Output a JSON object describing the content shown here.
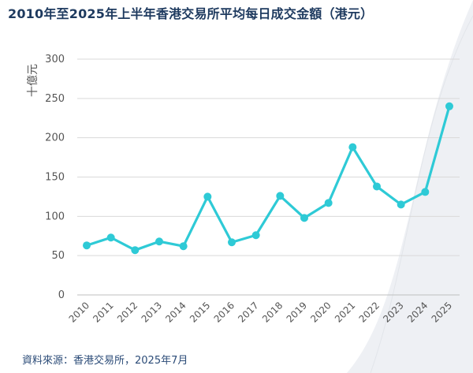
{
  "title": "2010年至2025年上半年香港交易所平均每日成交金額（港元）",
  "source": "資料來源：香港交易所，2025年7月",
  "colors": {
    "line": "#2ecad6",
    "grid": "#d9d9d9",
    "title": "#1e3a5f",
    "source": "#2c4c78",
    "background_wave": "#eef0f4"
  },
  "chart_data": {
    "type": "line",
    "title": "2010年至2025年上半年香港交易所平均每日成交金額（港元）",
    "ylabel": "十億元",
    "xlabel": "",
    "ylim": [
      0,
      300
    ],
    "yticks": [
      0,
      50,
      100,
      150,
      200,
      250,
      300
    ],
    "grid": true,
    "legend": "none",
    "categories": [
      "2010",
      "2011",
      "2012",
      "2013",
      "2014",
      "2015",
      "2016",
      "2017",
      "2018",
      "2019",
      "2020",
      "2021",
      "2022",
      "2023",
      "2024",
      "2025"
    ],
    "series": [
      {
        "values": [
          63,
          73,
          57,
          68,
          62,
          125,
          67,
          76,
          126,
          98,
          117,
          188,
          138,
          115,
          131,
          240
        ]
      }
    ]
  }
}
